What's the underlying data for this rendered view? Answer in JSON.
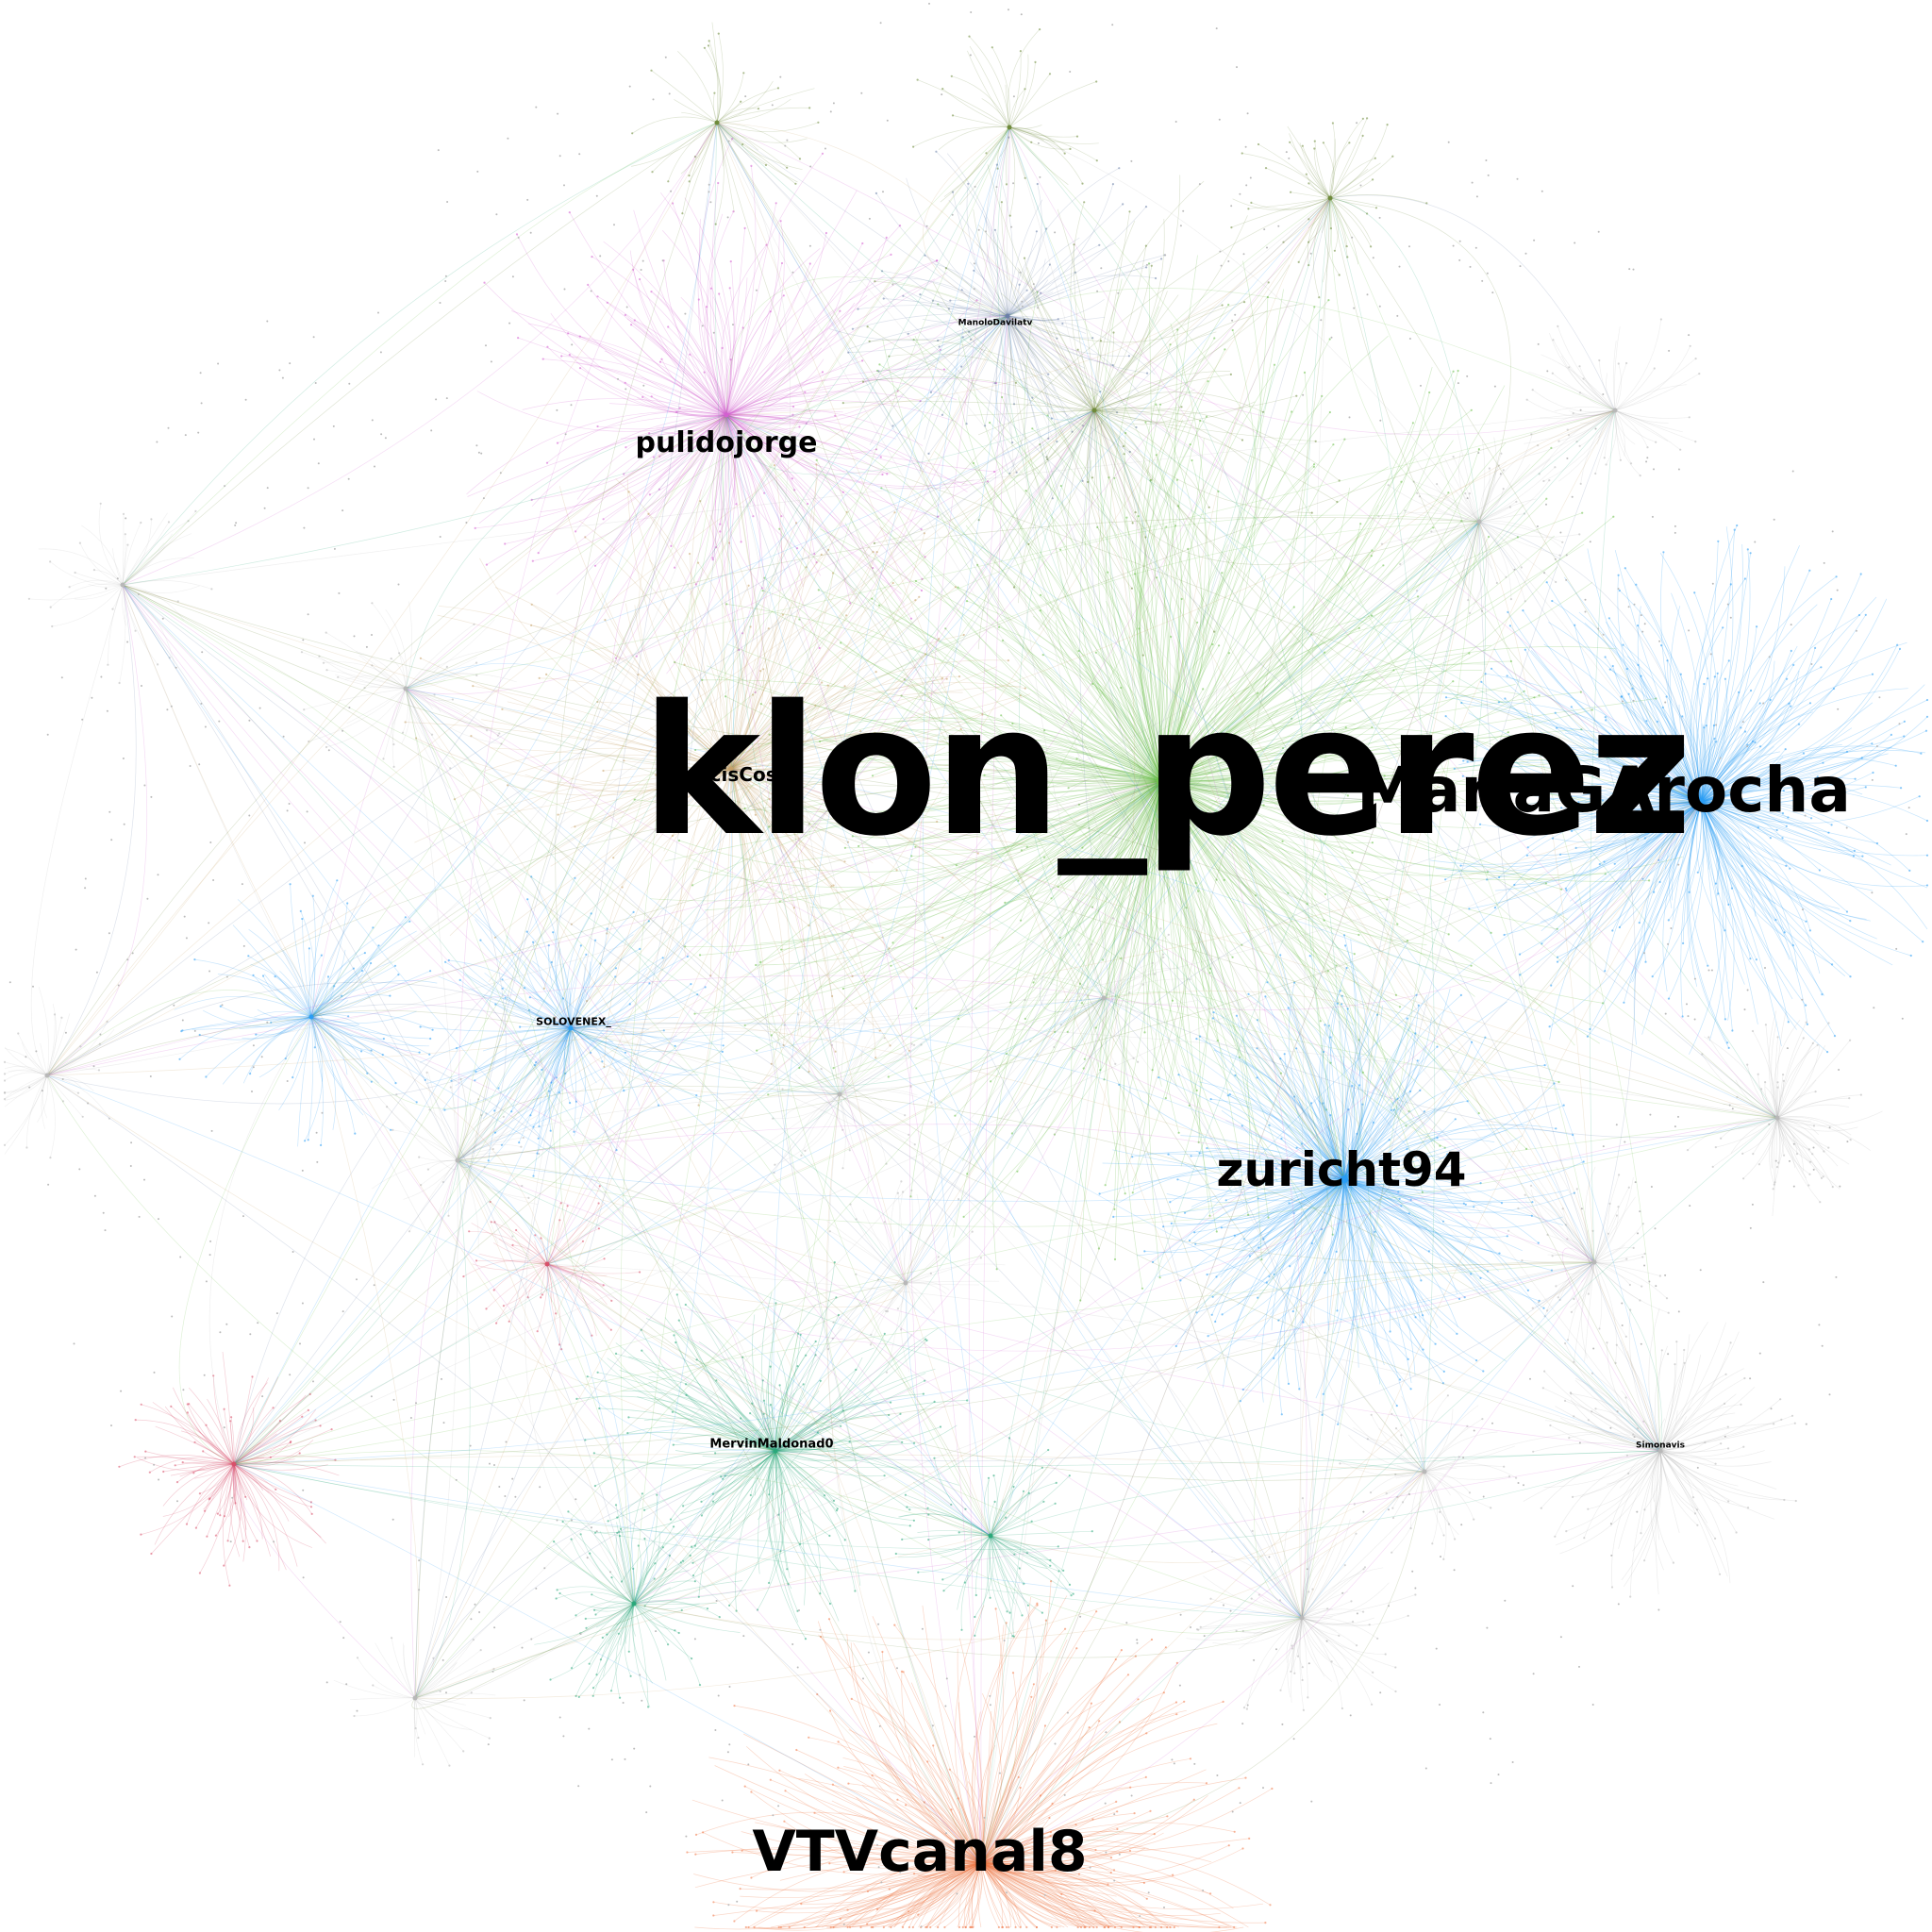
{
  "graph": {
    "labels": {
      "klon_perez": "klon_perez",
      "mariagarocha": "MariaGArocha",
      "zuricht94": "zuricht94",
      "vtvcanal8": "VTVcanal8",
      "pulidojorge": "pulidojorge",
      "narcisos10": "NarcisCos10",
      "mervinmaldonad0": "MervinMaldonad0",
      "solovenex": "SOLOVENEX_",
      "manolodavila": "ManoloDavilatv",
      "simonavis": "Simonavis"
    },
    "community_colors": {
      "green": "#6cc04a",
      "blue": "#2a9df4",
      "orange": "#f07a4a",
      "pink": "#d35fd0",
      "teal": "#2aa87a",
      "tan": "#c7a26a",
      "red": "#d8506a",
      "slate": "#6a7fa8",
      "olive": "#6e8a3a",
      "gray": "#b8b8b8"
    }
  }
}
